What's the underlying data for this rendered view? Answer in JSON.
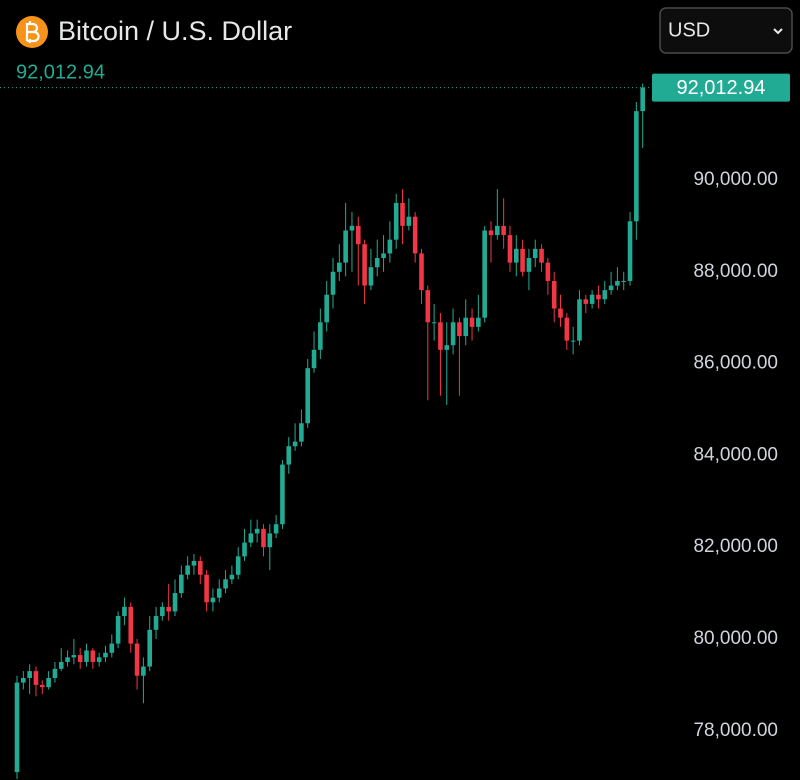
{
  "chart_data": {
    "type": "candlestick",
    "title": "Bitcoin / U.S. Dollar",
    "currency": "USD",
    "price_label": {
      "value": 92012.94,
      "label": "92,012.94"
    },
    "up_color": "#22ab94",
    "down_color": "#f23645",
    "ylim": [
      76928,
      92614
    ],
    "yticks": [
      {
        "value": 78000,
        "label": "78,000.00"
      },
      {
        "value": 80000,
        "label": "80,000.00"
      },
      {
        "value": 82000,
        "label": "82,000.00"
      },
      {
        "value": 84000,
        "label": "84,000.00"
      },
      {
        "value": 86000,
        "label": "86,000.00"
      },
      {
        "value": 88000,
        "label": "88,000.00"
      },
      {
        "value": 90000,
        "label": "90,000.00"
      }
    ],
    "open": [
      77100,
      79050,
      79150,
      79300,
      79000,
      78950,
      79150,
      79350,
      79500,
      79600,
      79650,
      79500,
      79750,
      79500,
      79600,
      79700,
      79900,
      80500,
      80700,
      79900,
      79200,
      79400,
      80200,
      80500,
      80700,
      80600,
      81000,
      81400,
      81600,
      81700,
      81400,
      80800,
      80900,
      81100,
      81300,
      81400,
      81800,
      82100,
      82300,
      82400,
      82000,
      82300,
      82500,
      83800,
      84200,
      84300,
      84700,
      85900,
      86300,
      86900,
      87500,
      88000,
      88200,
      88900,
      89000,
      88600,
      87700,
      88100,
      88300,
      88400,
      88700,
      89500,
      89000,
      89200,
      88400,
      87600,
      86900,
      86900,
      86300,
      86400,
      86900,
      86600,
      87000,
      86800,
      87000,
      88900,
      88800,
      89000,
      88800,
      88200,
      88500,
      88000,
      88300,
      88500,
      88200,
      87800,
      87200,
      87000,
      86500,
      86500,
      87400,
      87300,
      87500,
      87400,
      87600,
      87700,
      87800,
      87800,
      89100,
      91500
    ],
    "high": [
      79200,
      79300,
      79450,
      79400,
      79100,
      79300,
      79500,
      79800,
      79750,
      80000,
      79800,
      79900,
      79800,
      79700,
      79850,
      80100,
      80600,
      80900,
      80800,
      80000,
      79600,
      80500,
      80700,
      80800,
      81200,
      81300,
      81600,
      81800,
      81850,
      81800,
      81500,
      81100,
      81300,
      81500,
      81600,
      82000,
      82400,
      82600,
      82600,
      82500,
      82500,
      82700,
      83900,
      84400,
      84700,
      85000,
      86100,
      86700,
      87200,
      87800,
      88300,
      88600,
      89500,
      89300,
      89200,
      88700,
      88500,
      88700,
      88800,
      89100,
      89700,
      89800,
      89600,
      89300,
      88500,
      87700,
      87300,
      87100,
      86900,
      87200,
      87000,
      87400,
      87200,
      87500,
      89000,
      89100,
      89800,
      89600,
      89000,
      88800,
      88700,
      88500,
      88700,
      88600,
      88300,
      88000,
      87500,
      87100,
      86800,
      87600,
      87500,
      87600,
      87700,
      87800,
      88000,
      88100,
      88000,
      89300,
      91700,
      92100
    ],
    "low": [
      76950,
      78900,
      78800,
      78750,
      78800,
      78900,
      79050,
      79300,
      79400,
      79450,
      79350,
      79400,
      79350,
      79400,
      79500,
      79600,
      79800,
      80300,
      79700,
      78900,
      78600,
      79300,
      80000,
      80400,
      80400,
      80500,
      80900,
      81300,
      81400,
      81200,
      80600,
      80600,
      80800,
      81000,
      81200,
      81300,
      81700,
      82000,
      82100,
      81800,
      81500,
      82200,
      82400,
      83600,
      84100,
      84200,
      84600,
      85800,
      86100,
      86700,
      87200,
      87800,
      87900,
      88000,
      87700,
      87300,
      87600,
      87900,
      88000,
      88200,
      88500,
      88600,
      88900,
      88200,
      87300,
      85200,
      86500,
      85300,
      85100,
      86200,
      85300,
      86400,
      86500,
      86700,
      86900,
      88200,
      88700,
      88500,
      88000,
      87900,
      87900,
      87600,
      88100,
      88000,
      87500,
      86900,
      86800,
      86300,
      86200,
      86400,
      87100,
      87200,
      87200,
      87300,
      87500,
      87600,
      87600,
      87700,
      88700,
      90700
    ],
    "close": [
      79050,
      79150,
      79300,
      79000,
      78950,
      79150,
      79350,
      79500,
      79600,
      79650,
      79500,
      79750,
      79500,
      79600,
      79700,
      79900,
      80500,
      80700,
      79900,
      79200,
      79400,
      80200,
      80500,
      80700,
      80600,
      81000,
      81400,
      81600,
      81700,
      81400,
      80800,
      80900,
      81100,
      81300,
      81400,
      81800,
      82100,
      82300,
      82400,
      82000,
      82300,
      82500,
      83800,
      84200,
      84300,
      84700,
      85900,
      86300,
      86900,
      87500,
      88000,
      88200,
      88900,
      89000,
      88600,
      87700,
      88100,
      88300,
      88400,
      88700,
      89500,
      89000,
      89200,
      88400,
      87600,
      86900,
      86900,
      86300,
      86400,
      86900,
      86600,
      87000,
      86800,
      87000,
      88900,
      88800,
      89000,
      88800,
      88200,
      88500,
      88000,
      88300,
      88500,
      88200,
      87800,
      87200,
      87000,
      86500,
      86500,
      87400,
      87300,
      87500,
      87400,
      87600,
      87700,
      87800,
      87800,
      89100,
      91500,
      92012.94
    ]
  }
}
